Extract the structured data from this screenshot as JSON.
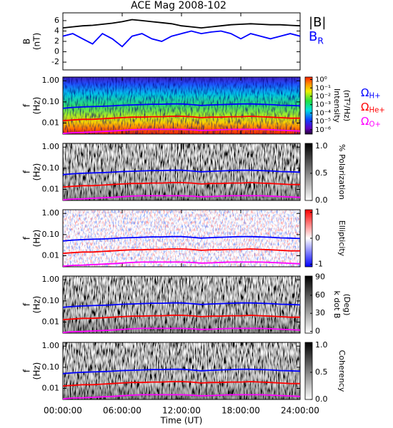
{
  "chart_data": [
    {
      "type": "line",
      "title": "ACE Mag 2008-102",
      "ylabel": [
        "B",
        "(nT)"
      ],
      "xlim": [
        0,
        24
      ],
      "ylim": [
        -3.5,
        7.5
      ],
      "yticks": [
        -2,
        0,
        2,
        4,
        6
      ],
      "x": [
        0,
        1,
        2,
        3,
        4,
        5,
        6,
        7,
        8,
        9,
        10,
        11,
        12,
        13,
        14,
        15,
        16,
        17,
        18,
        19,
        20,
        21,
        22,
        23,
        24
      ],
      "series": [
        {
          "name": "|B|",
          "color": "#000000",
          "values": [
            4.6,
            4.8,
            5.0,
            5.1,
            5.3,
            5.5,
            5.8,
            6.2,
            6.0,
            5.8,
            5.6,
            5.4,
            5.0,
            4.8,
            4.6,
            4.8,
            5.0,
            5.2,
            5.3,
            5.4,
            5.3,
            5.2,
            5.2,
            5.1,
            5.0
          ]
        },
        {
          "name": "B",
          "name_sub": "R",
          "color": "#0000ff",
          "values": [
            3.0,
            3.5,
            2.5,
            1.5,
            3.5,
            2.5,
            1.0,
            3.0,
            3.5,
            2.5,
            2.0,
            3.0,
            3.5,
            4.0,
            3.5,
            3.8,
            4.0,
            3.5,
            2.5,
            3.5,
            3.0,
            2.5,
            3.0,
            3.5,
            3.0
          ]
        }
      ]
    },
    {
      "type": "spectrogram",
      "colormap": "rainbow",
      "ylabel": [
        "f",
        "(Hz)"
      ],
      "xlim": [
        0,
        24
      ],
      "ylim": [
        0.003,
        1.5
      ],
      "yscale": "log",
      "yticks": [
        {
          "value": 0.01,
          "label": "0.01"
        },
        {
          "value": 0.1,
          "label": "0.10"
        },
        {
          "value": 1,
          "label": "1.00"
        }
      ],
      "colorbar_label": [
        "Intensity",
        "(nT²/Hz)"
      ],
      "clim": [
        3e-07,
        2
      ],
      "cscale": "log",
      "cticks": [
        {
          "value": 1,
          "label": "10⁰"
        },
        {
          "value": 0.1,
          "label": "10⁻¹"
        },
        {
          "value": 0.01,
          "label": "10⁻²"
        },
        {
          "value": 0.001,
          "label": "10⁻³"
        },
        {
          "value": 0.0001,
          "label": "10⁻⁴"
        },
        {
          "value": 1e-05,
          "label": "10⁻⁵"
        },
        {
          "value": 1e-06,
          "label": "10⁻⁶"
        }
      ],
      "x": [
        0,
        1,
        2,
        3,
        4,
        5,
        6,
        7,
        8,
        9,
        10,
        11,
        12,
        13,
        14,
        15,
        16,
        17,
        18,
        19,
        20,
        21,
        22,
        23,
        24
      ],
      "series": [
        {
          "name": "Ω",
          "name_sub": "H+",
          "color": "#0000ff",
          "values": [
            0.05,
            0.055,
            0.058,
            0.06,
            0.062,
            0.065,
            0.07,
            0.072,
            0.075,
            0.078,
            0.078,
            0.08,
            0.08,
            0.075,
            0.068,
            0.072,
            0.075,
            0.078,
            0.08,
            0.08,
            0.078,
            0.075,
            0.07,
            0.068,
            0.065
          ]
        },
        {
          "name": "Ω",
          "name_sub": "He+",
          "color": "#ff0000",
          "values": [
            0.013,
            0.014,
            0.015,
            0.015,
            0.016,
            0.017,
            0.018,
            0.019,
            0.019,
            0.02,
            0.02,
            0.021,
            0.021,
            0.02,
            0.018,
            0.019,
            0.019,
            0.02,
            0.02,
            0.021,
            0.02,
            0.019,
            0.018,
            0.017,
            0.017
          ]
        },
        {
          "name": "Ω",
          "name_sub": "O+",
          "color": "#ff00ff",
          "values": [
            0.0032,
            0.0035,
            0.0036,
            0.0038,
            0.004,
            0.0042,
            0.0045,
            0.0048,
            0.005,
            0.005,
            0.005,
            0.005,
            0.005,
            0.0048,
            0.0045,
            0.0046,
            0.0048,
            0.005,
            0.005,
            0.005,
            0.005,
            0.0048,
            0.0046,
            0.0044,
            0.0042
          ]
        }
      ]
    },
    {
      "type": "spectrogram",
      "colormap": "gray",
      "ylabel": [
        "f",
        "(Hz)"
      ],
      "xlim": [
        0,
        24
      ],
      "ylim": [
        0.003,
        1.5
      ],
      "yscale": "log",
      "yticks": [
        {
          "value": 0.01,
          "label": "0.01"
        },
        {
          "value": 0.1,
          "label": "0.10"
        },
        {
          "value": 1,
          "label": "1.00"
        }
      ],
      "colorbar_label": [
        "% Polarization"
      ],
      "clim": [
        0,
        1.05
      ],
      "cticks": [
        {
          "value": 0,
          "label": "0.0"
        },
        0.5,
        {
          "value": 1,
          "label": "1.0"
        }
      ]
    },
    {
      "type": "spectrogram",
      "colormap": "bwr",
      "ylabel": [
        "f",
        "(Hz)"
      ],
      "xlim": [
        0,
        24
      ],
      "ylim": [
        0.003,
        1.5
      ],
      "yscale": "log",
      "yticks": [
        {
          "value": 0.01,
          "label": "0.01"
        },
        {
          "value": 0.1,
          "label": "0.10"
        },
        {
          "value": 1,
          "label": "1.00"
        }
      ],
      "colorbar_label": [
        "Ellipticity"
      ],
      "clim": [
        -1.1,
        1.1
      ],
      "cticks": [
        -1,
        0,
        1
      ]
    },
    {
      "type": "spectrogram",
      "colormap": "gray",
      "ylabel": [
        "f",
        "(Hz)"
      ],
      "xlim": [
        0,
        24
      ],
      "ylim": [
        0.003,
        1.5
      ],
      "yscale": "log",
      "yticks": [
        {
          "value": 0.01,
          "label": "0.01"
        },
        {
          "value": 0.1,
          "label": "0.10"
        },
        {
          "value": 1,
          "label": "1.00"
        }
      ],
      "colorbar_label": [
        "k dot B",
        "(Deg)"
      ],
      "clim": [
        -3,
        92
      ],
      "cticks": [
        0,
        30,
        60,
        90
      ]
    },
    {
      "type": "spectrogram",
      "colormap": "gray",
      "ylabel": [
        "f",
        "(Hz)"
      ],
      "xlim": [
        0,
        24
      ],
      "ylim": [
        0.003,
        1.5
      ],
      "yscale": "log",
      "yticks": [
        {
          "value": 0.01,
          "label": "0.01"
        },
        {
          "value": 0.1,
          "label": "0.10"
        },
        {
          "value": 1,
          "label": "1.00"
        }
      ],
      "colorbar_label": [
        "Coherency"
      ],
      "clim": [
        0,
        1.05
      ],
      "cticks": [
        {
          "value": 0,
          "label": "0.0"
        },
        0.5,
        {
          "value": 1,
          "label": "1.0"
        }
      ],
      "xticks": [
        {
          "value": 0,
          "label": "00:00:00"
        },
        {
          "value": 6,
          "label": "06:00:00"
        },
        {
          "value": 12,
          "label": "12:00:00"
        },
        {
          "value": 18,
          "label": "18:00:00"
        },
        {
          "value": 24,
          "label": "24:00:00"
        }
      ],
      "xlabel": "Time (UT)"
    }
  ]
}
